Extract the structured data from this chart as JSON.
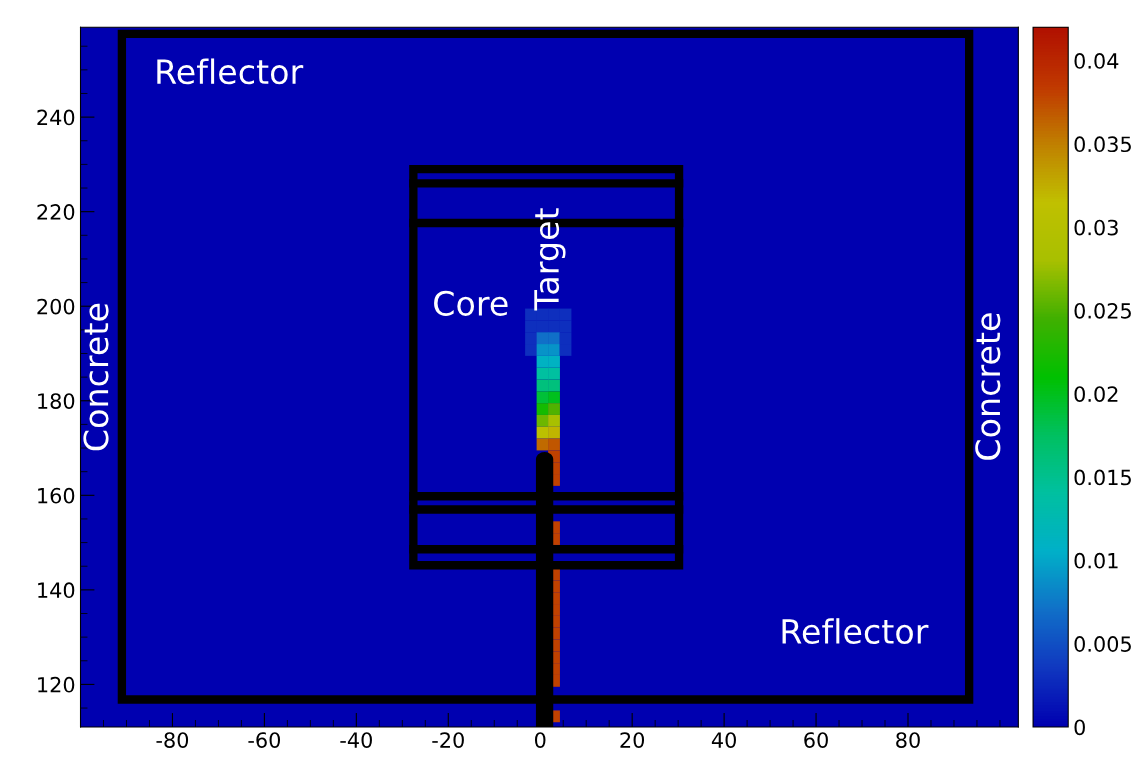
{
  "chart_data": {
    "type": "scatter",
    "x": [
      -2,
      0.5,
      3,
      5.5,
      -2,
      0.5,
      3,
      5.5,
      -2,
      0.5,
      3,
      5.5,
      -2,
      0.5,
      3,
      5.5,
      0.5,
      3,
      0.5,
      3,
      0.5,
      3,
      0.5,
      3,
      0.5,
      3,
      0.5,
      3,
      0.5,
      3,
      0.5,
      3,
      3,
      3,
      3,
      null,
      null,
      null,
      3,
      3,
      null,
      null,
      3,
      3,
      3,
      3,
      3,
      3,
      3,
      3,
      3,
      3,
      null,
      null,
      3
    ],
    "values": [
      198.25,
      198.25,
      198.25,
      198.25,
      195.75,
      195.75,
      195.75,
      195.75,
      193.25,
      193.25,
      193.25,
      193.25,
      190.75,
      190.75,
      190.75,
      190.75,
      188.25,
      188.25,
      185.75,
      185.75,
      183.25,
      183.25,
      180.75,
      180.75,
      178.25,
      178.25,
      175.75,
      175.75,
      173.25,
      173.25,
      170.75,
      170.75,
      168.25,
      165.75,
      163.25,
      null,
      null,
      null,
      153.25,
      150.75,
      null,
      null,
      143.25,
      140.75,
      138.25,
      135.75,
      133.25,
      130.75,
      128.25,
      125.75,
      123.25,
      120.75,
      null,
      null,
      113.25
    ],
    "cvalues": [
      0.003,
      0.003,
      0.003,
      0.003,
      0.003,
      0.003,
      0.003,
      0.003,
      0.003,
      0.007,
      0.007,
      0.003,
      0.003,
      0.009,
      0.009,
      0.003,
      0.011,
      0.011,
      0.014,
      0.014,
      0.016,
      0.016,
      0.019,
      0.02,
      0.022,
      0.025,
      0.026,
      0.028,
      0.031,
      0.032,
      0.036,
      0.037,
      0.038,
      0.038,
      0.038,
      null,
      null,
      null,
      0.038,
      0.038,
      null,
      null,
      0.038,
      0.038,
      0.038,
      0.038,
      0.038,
      0.038,
      0.038,
      0.038,
      0.038,
      0.038,
      null,
      null,
      0.038
    ],
    "marker": "square",
    "clim": [
      0,
      0.042
    ],
    "cticks": [
      0,
      0.005,
      0.01,
      0.015,
      0.02,
      0.025,
      0.03,
      0.035,
      0.04
    ],
    "xlim": [
      -100,
      104
    ],
    "ylim": [
      111,
      259
    ],
    "xticks": [
      -80,
      -60,
      -40,
      -20,
      0,
      20,
      40,
      60,
      80
    ],
    "yticks": [
      120,
      140,
      160,
      180,
      200,
      220,
      240
    ],
    "annotations": [
      "Reflector",
      "Reflector",
      "Core",
      "Target",
      "Concrete",
      "Concrete"
    ]
  }
}
